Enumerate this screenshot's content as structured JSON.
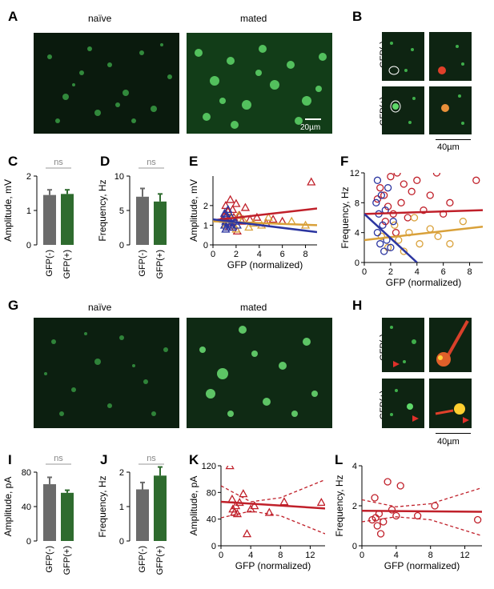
{
  "panels": {
    "A": {
      "letter": "A",
      "titles": [
        "naïve",
        "mated"
      ],
      "scalebar": "20µm"
    },
    "B": {
      "letter": "B",
      "rows": [
        "GFP(-)",
        "GFP(+)"
      ],
      "scalebar": "40µm"
    },
    "C": {
      "letter": "C",
      "sig": "ns"
    },
    "D": {
      "letter": "D",
      "sig": "ns"
    },
    "E": {
      "letter": "E"
    },
    "F": {
      "letter": "F"
    },
    "G": {
      "letter": "G",
      "titles": [
        "naïve",
        "mated"
      ]
    },
    "H": {
      "letter": "H",
      "rows": [
        "GFP(-)",
        "GFP(+)"
      ],
      "scalebar": "40µm"
    },
    "I": {
      "letter": "I",
      "sig": "ns"
    },
    "J": {
      "letter": "J",
      "sig": "ns"
    },
    "K": {
      "letter": "K"
    },
    "L": {
      "letter": "L"
    }
  },
  "chart_data": [
    {
      "id": "C",
      "type": "bar",
      "categories": [
        "GFP(-)",
        "GFP(+)"
      ],
      "values": [
        1.45,
        1.48
      ],
      "errors": [
        0.15,
        0.12
      ],
      "ylabel": "Amplitude, mV",
      "ylim": [
        0,
        2
      ],
      "yticks": [
        0,
        1,
        2
      ],
      "colors": [
        "#6b6b6b",
        "#2e6b2e"
      ]
    },
    {
      "id": "D",
      "type": "bar",
      "categories": [
        "GFP(-)",
        "GFP(+)"
      ],
      "values": [
        7.0,
        6.3
      ],
      "errors": [
        1.2,
        1.1
      ],
      "ylabel": "Frequency, Hz",
      "ylim": [
        0,
        10
      ],
      "yticks": [
        0,
        5,
        10
      ],
      "colors": [
        "#6b6b6b",
        "#2e6b2e"
      ]
    },
    {
      "id": "E",
      "type": "scatter",
      "xlabel": "GFP (normalized)",
      "ylabel": "Amplitude, mV",
      "xlim": [
        0,
        9
      ],
      "ylim": [
        0,
        3.5
      ],
      "xticks": [
        0,
        2,
        4,
        6,
        8
      ],
      "yticks": [
        0,
        1,
        2
      ],
      "marker": "triangle",
      "series": [
        {
          "color": "#c0202a",
          "points": [
            [
              1.0,
              1.5
            ],
            [
              1.1,
              2.0
            ],
            [
              1.2,
              1.2
            ],
            [
              1.3,
              1.7
            ],
            [
              1.4,
              0.9
            ],
            [
              1.5,
              2.3
            ],
            [
              1.6,
              1.1
            ],
            [
              1.7,
              1.8
            ],
            [
              1.8,
              1.4
            ],
            [
              2.0,
              2.1
            ],
            [
              2.1,
              0.7
            ],
            [
              2.3,
              1.5
            ],
            [
              2.5,
              1.2
            ],
            [
              2.8,
              1.9
            ],
            [
              3.2,
              1.3
            ],
            [
              3.8,
              1.4
            ],
            [
              4.6,
              1.1
            ],
            [
              5.2,
              1.3
            ],
            [
              6.0,
              1.2
            ],
            [
              8.5,
              3.2
            ]
          ],
          "fit": [
            [
              0,
              1.25
            ],
            [
              9,
              1.85
            ]
          ]
        },
        {
          "color": "#d9a13a",
          "points": [
            [
              1.1,
              1.0
            ],
            [
              1.3,
              1.2
            ],
            [
              1.5,
              1.4
            ],
            [
              1.8,
              1.0
            ],
            [
              2.0,
              0.8
            ],
            [
              2.2,
              1.5
            ],
            [
              2.6,
              1.3
            ],
            [
              3.1,
              0.9
            ],
            [
              3.5,
              1.1
            ],
            [
              4.2,
              1.0
            ],
            [
              4.8,
              1.4
            ],
            [
              6.8,
              1.2
            ],
            [
              8.0,
              1.0
            ]
          ],
          "fit": [
            [
              0,
              1.2
            ],
            [
              9,
              1.0
            ]
          ]
        },
        {
          "color": "#2b35a0",
          "points": [
            [
              0.9,
              1.3
            ],
            [
              1.0,
              1.0
            ],
            [
              1.0,
              1.6
            ],
            [
              1.1,
              0.8
            ],
            [
              1.1,
              1.2
            ],
            [
              1.2,
              1.5
            ],
            [
              1.2,
              0.9
            ],
            [
              1.3,
              1.1
            ],
            [
              1.3,
              1.8
            ],
            [
              1.4,
              1.3
            ],
            [
              1.5,
              1.0
            ],
            [
              1.6,
              1.4
            ],
            [
              1.7,
              0.9
            ],
            [
              1.9,
              1.2
            ],
            [
              2.1,
              1.0
            ]
          ],
          "fit": [
            [
              0,
              1.3
            ],
            [
              9,
              0.65
            ]
          ]
        }
      ]
    },
    {
      "id": "F",
      "type": "scatter",
      "xlabel": "GFP (normalized)",
      "ylabel": "Frequency, Hz",
      "xlim": [
        0,
        9
      ],
      "ylim": [
        0,
        12
      ],
      "xticks": [
        0,
        2,
        4,
        6,
        8
      ],
      "yticks": [
        0,
        4,
        8,
        12
      ],
      "marker": "circle",
      "series": [
        {
          "color": "#c0202a",
          "points": [
            [
              1.0,
              8.5
            ],
            [
              1.2,
              10.0
            ],
            [
              1.5,
              9.0
            ],
            [
              1.8,
              7.5
            ],
            [
              2.0,
              11.5
            ],
            [
              2.2,
              6.5
            ],
            [
              2.5,
              12.0
            ],
            [
              2.8,
              8.0
            ],
            [
              3.0,
              10.5
            ],
            [
              3.3,
              6.0
            ],
            [
              3.6,
              9.5
            ],
            [
              4.0,
              11.0
            ],
            [
              4.5,
              7.0
            ],
            [
              5.0,
              9.0
            ],
            [
              5.5,
              12.0
            ],
            [
              6.0,
              6.5
            ],
            [
              6.5,
              8.0
            ],
            [
              8.5,
              11.0
            ],
            [
              1.6,
              5.5
            ],
            [
              2.4,
              4.0
            ]
          ],
          "fit": [
            [
              0,
              6.5
            ],
            [
              9,
              7.0
            ]
          ]
        },
        {
          "color": "#d9a13a",
          "points": [
            [
              1.3,
              3.5
            ],
            [
              1.8,
              2.0
            ],
            [
              2.3,
              5.0
            ],
            [
              2.6,
              3.0
            ],
            [
              3.0,
              1.5
            ],
            [
              3.4,
              4.0
            ],
            [
              3.8,
              6.0
            ],
            [
              4.2,
              2.5
            ],
            [
              5.0,
              4.5
            ],
            [
              5.6,
              3.5
            ],
            [
              6.5,
              2.5
            ],
            [
              7.5,
              5.5
            ]
          ],
          "fit": [
            [
              0,
              3.0
            ],
            [
              9,
              4.8
            ]
          ]
        },
        {
          "color": "#2b35a0",
          "points": [
            [
              0.9,
              8.0
            ],
            [
              1.0,
              11.0
            ],
            [
              1.0,
              4.0
            ],
            [
              1.1,
              6.5
            ],
            [
              1.2,
              2.5
            ],
            [
              1.3,
              9.0
            ],
            [
              1.4,
              5.0
            ],
            [
              1.5,
              1.5
            ],
            [
              1.6,
              7.0
            ],
            [
              1.7,
              3.0
            ],
            [
              1.8,
              10.0
            ],
            [
              2.0,
              2.0
            ],
            [
              2.2,
              5.5
            ]
          ],
          "fit": [
            [
              0,
              6.5
            ],
            [
              4,
              0
            ]
          ]
        }
      ]
    },
    {
      "id": "I",
      "type": "bar",
      "categories": [
        "GFP(-)",
        "GFP(+)"
      ],
      "values": [
        66,
        56
      ],
      "errors": [
        8,
        3
      ],
      "ylabel": "Amplitude, pA",
      "ylim": [
        0,
        80
      ],
      "yticks": [
        0,
        40,
        80
      ],
      "colors": [
        "#6b6b6b",
        "#2e6b2e"
      ]
    },
    {
      "id": "J",
      "type": "bar",
      "categories": [
        "GFP(-)",
        "GFP(+)"
      ],
      "values": [
        1.5,
        1.9
      ],
      "errors": [
        0.2,
        0.25
      ],
      "ylabel": "Frequency, Hz",
      "ylim": [
        0,
        2
      ],
      "yticks": [
        0,
        1,
        2
      ],
      "colors": [
        "#6b6b6b",
        "#2e6b2e"
      ]
    },
    {
      "id": "K",
      "type": "scatter",
      "xlabel": "GFP (normalized)",
      "ylabel": "Amplitude, pA",
      "xlim": [
        0,
        14
      ],
      "ylim": [
        0,
        120
      ],
      "xticks": [
        0,
        4,
        8,
        12
      ],
      "yticks": [
        0,
        40,
        80,
        120
      ],
      "marker": "triangle",
      "series": [
        {
          "color": "#c0202a",
          "points": [
            [
              1.2,
              120
            ],
            [
              1.5,
              70
            ],
            [
              1.6,
              55
            ],
            [
              1.8,
              50
            ],
            [
              2.0,
              60
            ],
            [
              2.2,
              48
            ],
            [
              2.5,
              65
            ],
            [
              3.0,
              78
            ],
            [
              3.5,
              18
            ],
            [
              4.0,
              55
            ],
            [
              4.5,
              60
            ],
            [
              6.5,
              50
            ],
            [
              8.5,
              66
            ],
            [
              13.5,
              65
            ]
          ],
          "fit": [
            [
              0,
              66
            ],
            [
              14,
              56
            ]
          ],
          "ci_upper": [
            [
              0,
              90
            ],
            [
              4,
              66
            ],
            [
              8,
              72
            ],
            [
              14,
              99
            ]
          ],
          "ci_lower": [
            [
              0,
              42
            ],
            [
              4,
              52
            ],
            [
              8,
              45
            ],
            [
              14,
              18
            ]
          ]
        }
      ]
    },
    {
      "id": "L",
      "type": "scatter",
      "xlabel": "GFP (normalized)",
      "ylabel": "Frequency, Hz",
      "xlim": [
        0,
        14
      ],
      "ylim": [
        0,
        4
      ],
      "xticks": [
        0,
        4,
        8,
        12
      ],
      "yticks": [
        0,
        2,
        4
      ],
      "marker": "circle",
      "series": [
        {
          "color": "#c0202a",
          "points": [
            [
              1.2,
              1.3
            ],
            [
              1.5,
              2.4
            ],
            [
              1.6,
              1.4
            ],
            [
              1.8,
              1.0
            ],
            [
              2.0,
              1.6
            ],
            [
              2.2,
              0.6
            ],
            [
              2.5,
              1.2
            ],
            [
              3.0,
              3.2
            ],
            [
              3.5,
              1.8
            ],
            [
              4.0,
              1.5
            ],
            [
              4.5,
              3.0
            ],
            [
              6.5,
              1.5
            ],
            [
              8.5,
              2.0
            ],
            [
              13.5,
              1.3
            ]
          ],
          "fit": [
            [
              0,
              1.75
            ],
            [
              14,
              1.7
            ]
          ],
          "ci_upper": [
            [
              0,
              2.3
            ],
            [
              4,
              1.95
            ],
            [
              8,
              2.1
            ],
            [
              14,
              2.9
            ]
          ],
          "ci_lower": [
            [
              0,
              1.2
            ],
            [
              4,
              1.45
            ],
            [
              8,
              1.3
            ],
            [
              14,
              0.5
            ]
          ]
        }
      ]
    }
  ]
}
